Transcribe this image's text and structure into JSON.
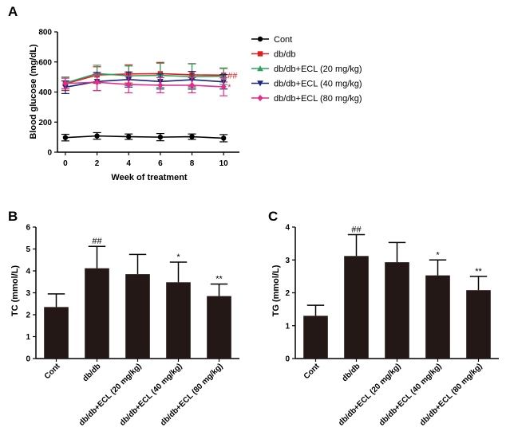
{
  "chart_data": [
    {
      "panel": "A",
      "type": "line",
      "title": "",
      "xlabel": "Week of treatment",
      "ylabel": "Blood glucose (mg/dL)",
      "x": [
        0,
        2,
        4,
        6,
        8,
        10
      ],
      "x_ticks": [
        "0",
        "2",
        "4",
        "6",
        "8",
        "10"
      ],
      "y_ticks": [
        "0",
        "200",
        "400",
        "600",
        "800"
      ],
      "ylim": [
        0,
        800
      ],
      "xlim": [
        -0.5,
        11
      ],
      "legend_position": "right",
      "series": [
        {
          "name": "Cont",
          "color": "#000000",
          "marker": "circle",
          "values": [
            97,
            108,
            103,
            100,
            103,
            93
          ],
          "err": [
            22,
            22,
            18,
            24,
            18,
            24
          ]
        },
        {
          "name": "db/db",
          "color": "#e41a1c",
          "marker": "square",
          "values": [
            455,
            513,
            520,
            522,
            514,
            512
          ],
          "err": [
            45,
            55,
            60,
            75,
            75,
            45
          ]
        },
        {
          "name": "db/db+ECL (20 mg/kg)",
          "color": "#2ca25f",
          "marker": "triangle-up",
          "values": [
            460,
            523,
            508,
            511,
            502,
            505
          ],
          "err": [
            40,
            55,
            65,
            80,
            85,
            55
          ]
        },
        {
          "name": "db/db+ECL (40 mg/kg)",
          "color": "#1a237e",
          "marker": "triangle-down",
          "values": [
            432,
            470,
            483,
            470,
            482,
            468
          ],
          "err": [
            42,
            60,
            50,
            50,
            55,
            48
          ]
        },
        {
          "name": "db/db+ECL (80 mg/kg)",
          "color": "#e7298a",
          "marker": "diamond",
          "values": [
            457,
            465,
            450,
            445,
            445,
            435
          ],
          "err": [
            35,
            55,
            55,
            50,
            50,
            60
          ]
        }
      ],
      "annotations": [
        {
          "text": "##",
          "x": 10,
          "y": 512,
          "color": "#e41a1c"
        },
        {
          "text": "*",
          "x": 10,
          "y": 435,
          "color": "#e7298a"
        }
      ]
    },
    {
      "panel": "B",
      "type": "bar",
      "xlabel": "",
      "ylabel": "TC (mmol/L)",
      "categories": [
        "Cont",
        "db/db",
        "db/db+ECL (20 mg/kg)",
        "db/db+ECL (40 mg/kg)",
        "db/db+ECL (80 mg/kg)"
      ],
      "values": [
        2.35,
        4.12,
        3.85,
        3.48,
        2.85
      ],
      "err": [
        0.6,
        1.0,
        0.9,
        0.92,
        0.55
      ],
      "y_ticks": [
        "0",
        "1",
        "2",
        "3",
        "4",
        "5",
        "6"
      ],
      "ylim": [
        0,
        6
      ],
      "bar_color": "#231815",
      "annotations": [
        "",
        "##",
        "",
        "*",
        "**"
      ]
    },
    {
      "panel": "C",
      "type": "bar",
      "xlabel": "",
      "ylabel": "TG (mmol/L)",
      "categories": [
        "Cont",
        "db/db",
        "db/db+ECL (20 mg/kg)",
        "db/db+ECL (40 mg/kg)",
        "db/db+ECL (80 mg/kg)"
      ],
      "values": [
        1.3,
        3.12,
        2.93,
        2.53,
        2.08
      ],
      "err": [
        0.32,
        0.65,
        0.6,
        0.47,
        0.42
      ],
      "y_ticks": [
        "0",
        "1",
        "2",
        "3",
        "4"
      ],
      "ylim": [
        0,
        4
      ],
      "bar_color": "#231815",
      "annotations": [
        "",
        "##",
        "",
        "*",
        "**"
      ]
    }
  ]
}
